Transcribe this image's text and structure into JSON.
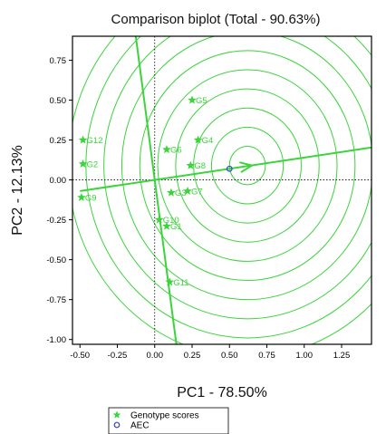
{
  "chart_data": {
    "type": "scatter",
    "title": "Comparison biplot (Total - 90.63%)",
    "xlabel": "PC1 - 78.50%",
    "ylabel": "PC2 - 12.13%",
    "xlim": [
      -0.55,
      1.45
    ],
    "ylim": [
      -1.03,
      0.9
    ],
    "xticks": [
      -0.5,
      -0.25,
      0.0,
      0.25,
      0.5,
      0.75,
      1.0,
      1.25
    ],
    "xtick_labels": [
      "-0.50",
      "-0.25",
      "0.00",
      "0.25",
      "0.50",
      "0.75",
      "1.00",
      "1.25"
    ],
    "yticks": [
      0.75,
      0.5,
      0.25,
      0.0,
      -0.25,
      -0.5,
      -0.75,
      -1.0
    ],
    "ytick_labels": [
      "0.75",
      "0.50",
      "0.25",
      "0.00",
      "-0.25",
      "-0.50",
      "-0.75",
      "-1.00"
    ],
    "reference_lines": {
      "x0": 0,
      "y0": 0,
      "style": "dotted"
    },
    "series": [
      {
        "name": "Genotype scores",
        "marker": "star",
        "color": "#3bd43b",
        "points": [
          {
            "label": "G1",
            "x": 0.08,
            "y": -0.29
          },
          {
            "label": "G2",
            "x": -0.48,
            "y": 0.1
          },
          {
            "label": "G3",
            "x": 0.11,
            "y": -0.08
          },
          {
            "label": "G4",
            "x": 0.29,
            "y": 0.25
          },
          {
            "label": "G5",
            "x": 0.25,
            "y": 0.5
          },
          {
            "label": "G6",
            "x": 0.08,
            "y": 0.19
          },
          {
            "label": "G7",
            "x": 0.22,
            "y": -0.07
          },
          {
            "label": "G8",
            "x": 0.24,
            "y": 0.09
          },
          {
            "label": "G9",
            "x": -0.49,
            "y": -0.11
          },
          {
            "label": "G10",
            "x": 0.03,
            "y": -0.25
          },
          {
            "label": "G11",
            "x": 0.1,
            "y": -0.64
          },
          {
            "label": "G12",
            "x": -0.48,
            "y": 0.25
          }
        ]
      },
      {
        "name": "AEC",
        "marker": "circle",
        "color": "#3344cc",
        "points": [
          {
            "label": "",
            "x": 0.5,
            "y": 0.07
          }
        ]
      }
    ],
    "aec_axis": {
      "color": "#3bd43b",
      "abscissa_through_origin": {
        "x_from": -0.5,
        "x_to": 1.45,
        "slope": 0.14
      },
      "arrow_tip": {
        "x": 0.65,
        "y": 0.09
      },
      "ordinate_through_origin": {
        "y_from": 0.9,
        "y_to": -1.03,
        "slope": -7.1
      }
    },
    "concentric_circles": {
      "center": {
        "x": 0.62,
        "y": 0.09
      },
      "radii": [
        0.12,
        0.24,
        0.36,
        0.48,
        0.6,
        0.72,
        0.84,
        0.96,
        1.08,
        1.2
      ],
      "color": "#3bd43b"
    },
    "legend": {
      "placement": "bottom-center",
      "entries": [
        {
          "label": "Genotype scores",
          "marker": "star",
          "color": "#3bd43b"
        },
        {
          "label": "AEC",
          "marker": "circle",
          "color": "#3344cc"
        }
      ]
    },
    "grid": false
  }
}
